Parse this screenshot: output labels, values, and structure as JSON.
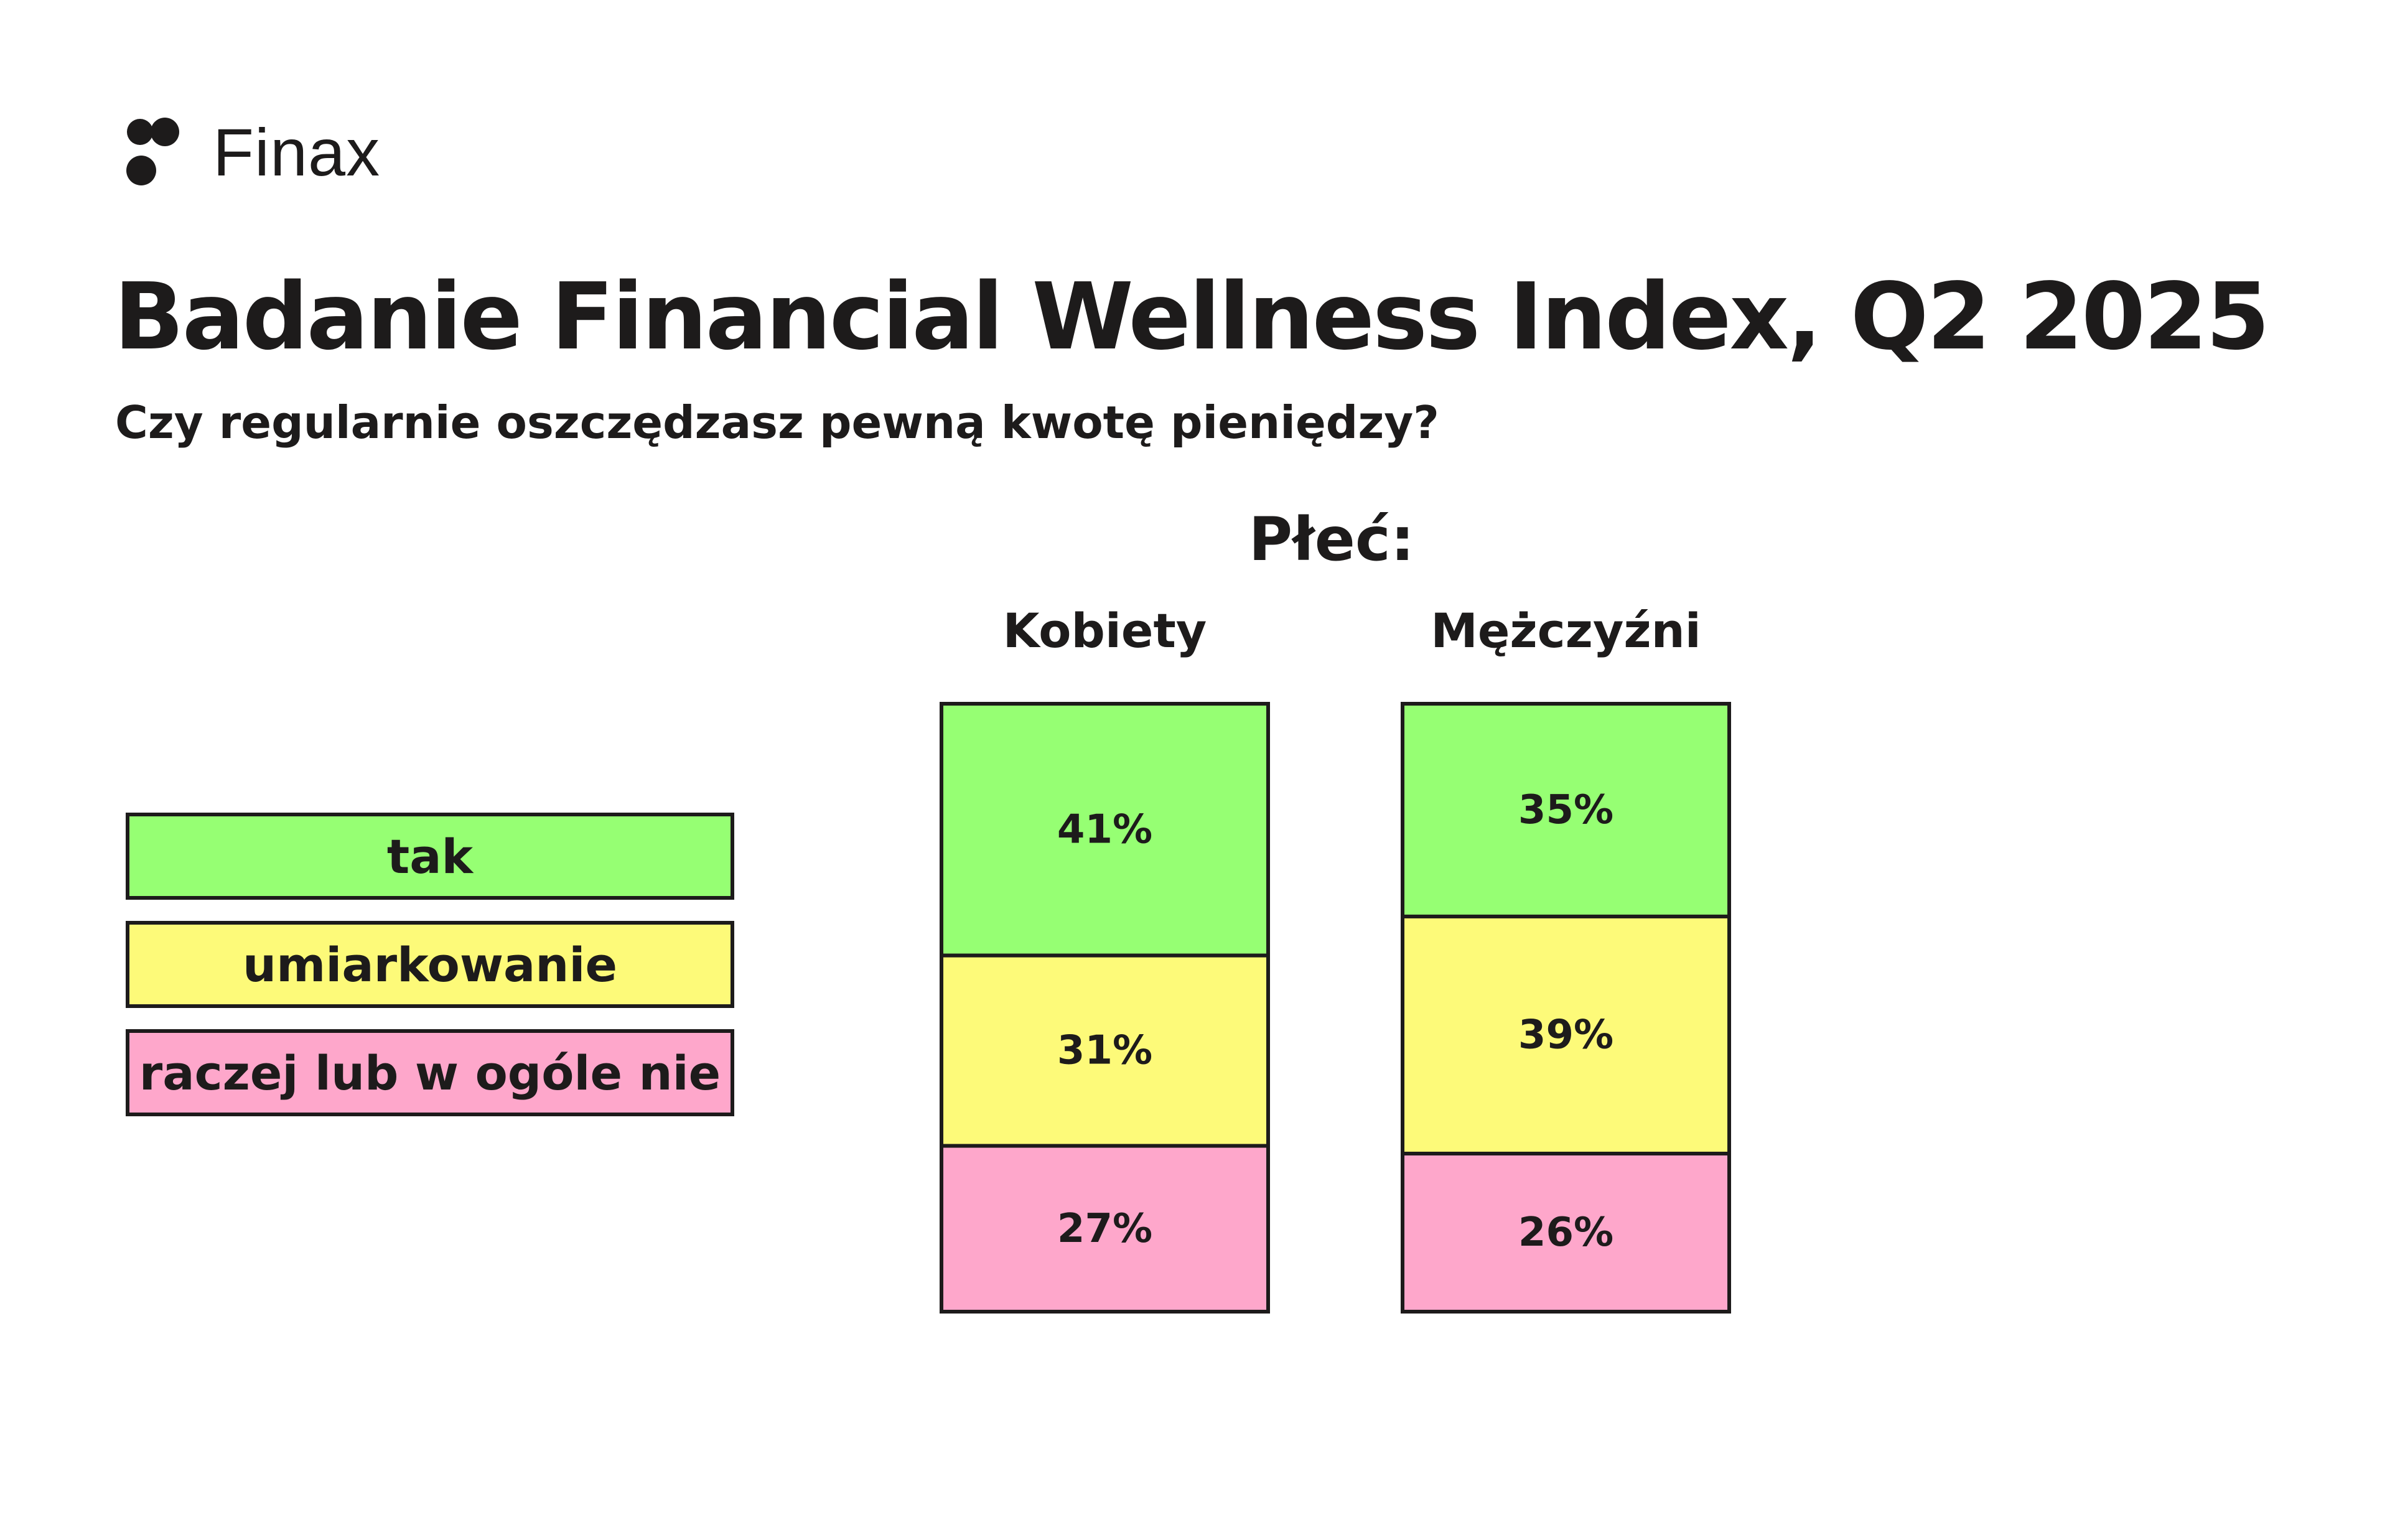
{
  "brand": {
    "name": "Finax",
    "icon": "logo-icon"
  },
  "header": {
    "title": "Badanie Financial Wellness Index, Q2 2025",
    "subtitle": "Czy regularnie oszczędzasz pewną kwotę pieniędzy?"
  },
  "legend": {
    "items": [
      {
        "label": "tak",
        "color": "#96ff73"
      },
      {
        "label": "umiarkowanie",
        "color": "#fdfa79"
      },
      {
        "label": "raczej lub w ogóle nie",
        "color": "#fea7cb"
      }
    ]
  },
  "chart_data": {
    "type": "bar",
    "stacked": true,
    "title": "Płeć:",
    "categories": [
      "Kobiety",
      "Mężczyźni"
    ],
    "series": [
      {
        "name": "tak",
        "values": [
          41,
          35
        ],
        "color": "#96ff73"
      },
      {
        "name": "umiarkowanie",
        "values": [
          31,
          39
        ],
        "color": "#fdfa79"
      },
      {
        "name": "raczej lub w ogóle nie",
        "values": [
          27,
          26
        ],
        "color": "#fea7cb"
      }
    ],
    "value_suffix": "%",
    "grid": false,
    "legend_position": "left"
  }
}
